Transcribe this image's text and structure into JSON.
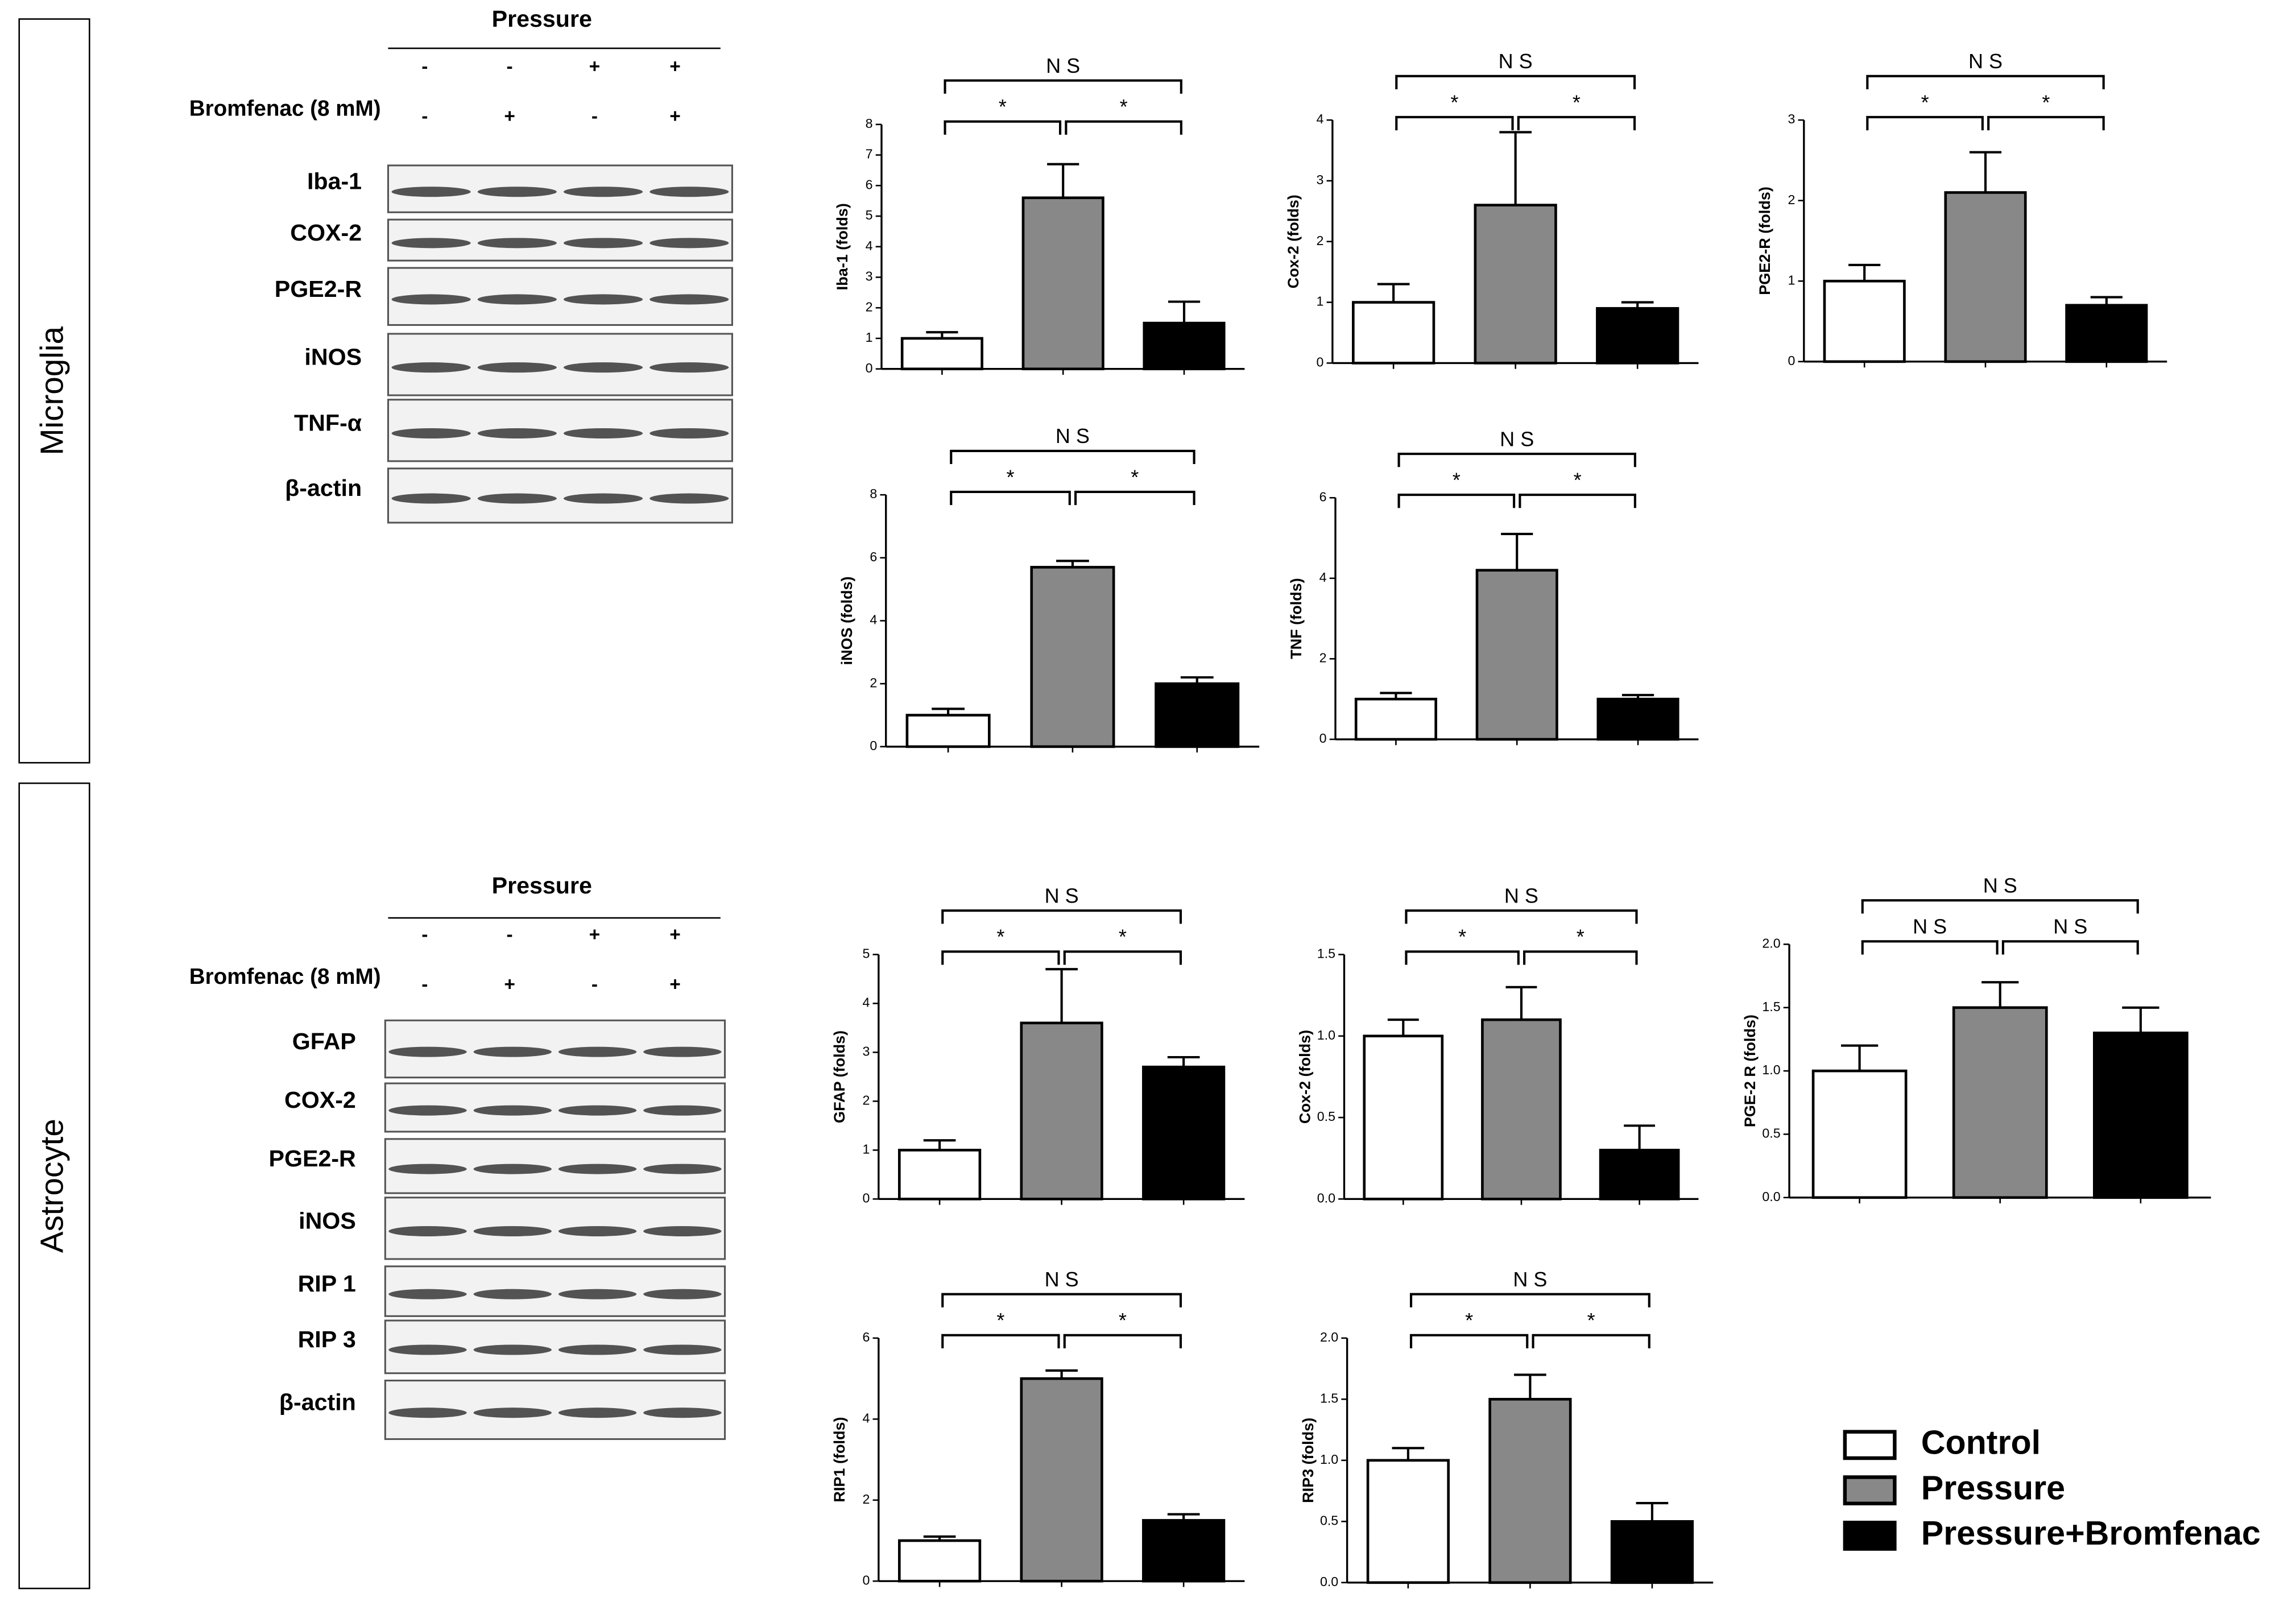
{
  "panels": [
    {
      "label": "Microglia",
      "condition": "Pressure",
      "treatment": "Bromfenac (8 mM)",
      "pressure_signs": [
        "-",
        "-",
        "+",
        "+"
      ],
      "treatment_signs": [
        "-",
        "+",
        "-",
        "+"
      ],
      "bands": [
        "Iba-1",
        "COX-2",
        "PGE2-R",
        "iNOS",
        "TNF-α",
        "β-actin"
      ]
    },
    {
      "label": "Astrocyte",
      "condition": "Pressure",
      "treatment": "Bromfenac (8 mM)",
      "pressure_signs": [
        "-",
        "-",
        "+",
        "+"
      ],
      "treatment_signs": [
        "-",
        "+",
        "-",
        "+"
      ],
      "bands": [
        "GFAP",
        "COX-2",
        "PGE2-R",
        "iNOS",
        "RIP 1",
        "RIP 3",
        "β-actin"
      ]
    }
  ],
  "legend": {
    "entries": [
      {
        "name": "Control",
        "color": "#ffffff"
      },
      {
        "name": "Pressure",
        "color": "#888888"
      },
      {
        "name": "Pressure+Bromfenac",
        "color": "#000000"
      }
    ]
  },
  "chart_data": [
    {
      "type": "bar",
      "ylabel": "Iba-1 (folds)",
      "categories": [
        null,
        null,
        null
      ],
      "values": [
        1,
        5.6,
        1.5
      ],
      "errors": [
        0.2,
        1.1,
        0.7
      ],
      "ylim": [
        0,
        8
      ],
      "yticks": [
        0,
        1,
        2,
        3,
        4,
        5,
        6,
        7,
        8
      ],
      "comparisons": {
        "left": "*",
        "right": "*",
        "overall": "N S"
      }
    },
    {
      "type": "bar",
      "ylabel": "Cox-2 (folds)",
      "categories": [
        null,
        null,
        null
      ],
      "values": [
        1,
        2.6,
        0.9
      ],
      "errors": [
        0.3,
        1.2,
        0.1
      ],
      "ylim": [
        0,
        4
      ],
      "yticks": [
        0,
        1,
        2,
        3,
        4
      ],
      "comparisons": {
        "left": "*",
        "right": "*",
        "overall": "N S"
      }
    },
    {
      "type": "bar",
      "ylabel": "PGE2-R (folds)",
      "categories": [
        null,
        null,
        null
      ],
      "values": [
        1,
        2.1,
        0.7
      ],
      "errors": [
        0.2,
        0.5,
        0.1
      ],
      "ylim": [
        0,
        3
      ],
      "yticks": [
        0,
        1,
        2,
        3
      ],
      "comparisons": {
        "left": "*",
        "right": "*",
        "overall": "N S"
      }
    },
    {
      "type": "bar",
      "ylabel": "iNOS (folds)",
      "categories": [
        null,
        null,
        null
      ],
      "values": [
        1,
        5.7,
        2
      ],
      "errors": [
        0.2,
        0.2,
        0.2
      ],
      "ylim": [
        0,
        8
      ],
      "yticks": [
        0,
        2,
        4,
        6,
        8
      ],
      "comparisons": {
        "left": "*",
        "right": "*",
        "overall": "N S"
      }
    },
    {
      "type": "bar",
      "ylabel": "TNF (folds)",
      "categories": [
        null,
        null,
        null
      ],
      "values": [
        1,
        4.2,
        1
      ],
      "errors": [
        0.15,
        0.9,
        0.1
      ],
      "ylim": [
        0,
        6
      ],
      "yticks": [
        0,
        2,
        4,
        6
      ],
      "comparisons": {
        "left": "*",
        "right": "*",
        "overall": "N S"
      }
    },
    {
      "type": "bar",
      "ylabel": "GFAP (folds)",
      "categories": [
        null,
        null,
        null
      ],
      "values": [
        1,
        3.6,
        2.7
      ],
      "errors": [
        0.2,
        1.1,
        0.2
      ],
      "ylim": [
        0,
        5
      ],
      "yticks": [
        0,
        1,
        2,
        3,
        4,
        5
      ],
      "comparisons": {
        "left": "*",
        "right": "*",
        "overall": "N S"
      }
    },
    {
      "type": "bar",
      "ylabel": "Cox-2 (folds)",
      "categories": [
        null,
        null,
        null
      ],
      "values": [
        1,
        1.1,
        0.3
      ],
      "errors": [
        0.1,
        0.2,
        0.15
      ],
      "ylim": [
        0,
        1.5
      ],
      "yticks": [
        {
          "value": 0,
          "label": "0.0"
        },
        {
          "value": 0.5,
          "label": "0.5"
        },
        {
          "value": 1,
          "label": "1.0"
        },
        {
          "value": 1.5,
          "label": "1.5"
        }
      ],
      "comparisons": {
        "left": "*",
        "right": "*",
        "overall": "N S"
      }
    },
    {
      "type": "bar",
      "ylabel": "PGE-2 R (folds)",
      "categories": [
        null,
        null,
        null
      ],
      "values": [
        1,
        1.5,
        1.3
      ],
      "errors": [
        0.2,
        0.2,
        0.2
      ],
      "ylim": [
        0,
        2
      ],
      "yticks": [
        {
          "value": 0,
          "label": "0.0"
        },
        {
          "value": 0.5,
          "label": "0.5"
        },
        {
          "value": 1,
          "label": "1.0"
        },
        {
          "value": 1.5,
          "label": "1.5"
        },
        {
          "value": 2,
          "label": "2.0"
        }
      ],
      "comparisons": {
        "left": "N S",
        "right": "N S",
        "overall": "N S"
      }
    },
    {
      "type": "bar",
      "ylabel": "RIP1 (folds)",
      "categories": [
        null,
        null,
        null
      ],
      "values": [
        1,
        5,
        1.5
      ],
      "errors": [
        0.1,
        0.2,
        0.15
      ],
      "ylim": [
        0,
        6
      ],
      "yticks": [
        0,
        2,
        4,
        6
      ],
      "comparisons": {
        "left": "*",
        "right": "*",
        "overall": "N S"
      }
    },
    {
      "type": "bar",
      "ylabel": "RIP3 (folds)",
      "categories": [
        null,
        null,
        null
      ],
      "values": [
        1,
        1.5,
        0.5
      ],
      "errors": [
        0.1,
        0.2,
        0.15
      ],
      "ylim": [
        0,
        2
      ],
      "yticks": [
        {
          "value": 0,
          "label": "0.0"
        },
        {
          "value": 0.5,
          "label": "0.5"
        },
        {
          "value": 1,
          "label": "1.0"
        },
        {
          "value": 1.5,
          "label": "1.5"
        },
        {
          "value": 2,
          "label": "2.0"
        }
      ],
      "comparisons": {
        "left": "*",
        "right": "*",
        "overall": "N S"
      }
    }
  ]
}
